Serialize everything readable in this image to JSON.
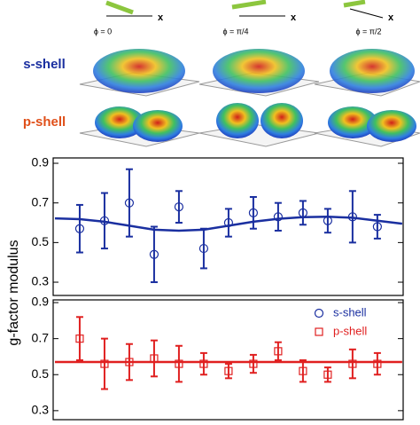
{
  "diagram": {
    "phi_labels": [
      "ϕ = 0",
      "ϕ = π/4",
      "ϕ = π/2"
    ],
    "axis_label": "x",
    "rows": [
      "s-shell",
      "p-shell"
    ]
  },
  "shared_ylabel": "g-factor modulus",
  "chart_data": [
    {
      "type": "errorbar",
      "xlim": [
        -1.07,
        13.04
      ],
      "ylim": [
        0.233,
        0.927
      ],
      "yticks": [
        0.3,
        0.5,
        0.7,
        0.9
      ],
      "series": [
        {
          "name": "s-shell",
          "color": "#1a2fa0",
          "marker": "circle",
          "x": [
            0,
            1,
            2,
            3,
            4,
            5,
            6,
            7,
            8,
            9,
            10,
            11,
            12
          ],
          "values": [
            0.57,
            0.61,
            0.7,
            0.44,
            0.68,
            0.47,
            0.6,
            0.65,
            0.63,
            0.65,
            0.61,
            0.63,
            0.58
          ],
          "errors": [
            0.12,
            0.14,
            0.17,
            0.14,
            0.08,
            0.1,
            0.07,
            0.08,
            0.07,
            0.06,
            0.06,
            0.13,
            0.06
          ]
        }
      ],
      "fit": {
        "x": [
          -1,
          0,
          1,
          2,
          3,
          4,
          5,
          6,
          7,
          8,
          9,
          10,
          11,
          12,
          13
        ],
        "values": [
          0.622,
          0.618,
          0.605,
          0.585,
          0.565,
          0.56,
          0.565,
          0.585,
          0.605,
          0.62,
          0.628,
          0.63,
          0.625,
          0.61,
          0.595
        ]
      }
    },
    {
      "type": "errorbar",
      "xlim": [
        -1.07,
        13.04
      ],
      "ylim": [
        0.25,
        0.915
      ],
      "yticks": [
        0.3,
        0.5,
        0.7,
        0.9
      ],
      "legend": "upper right",
      "series": [
        {
          "name": "p-shell",
          "color": "#e02020",
          "marker": "square",
          "x": [
            0,
            1,
            2,
            3,
            4,
            5,
            6,
            7,
            8,
            9,
            10,
            11,
            12
          ],
          "values": [
            0.7,
            0.56,
            0.57,
            0.59,
            0.56,
            0.56,
            0.52,
            0.56,
            0.63,
            0.52,
            0.5,
            0.56,
            0.56
          ],
          "errors": [
            0.12,
            0.14,
            0.1,
            0.1,
            0.1,
            0.06,
            0.04,
            0.05,
            0.05,
            0.06,
            0.04,
            0.08,
            0.06
          ]
        }
      ],
      "fit": {
        "x": [
          -1,
          13
        ],
        "values": [
          0.57,
          0.57
        ]
      }
    }
  ]
}
